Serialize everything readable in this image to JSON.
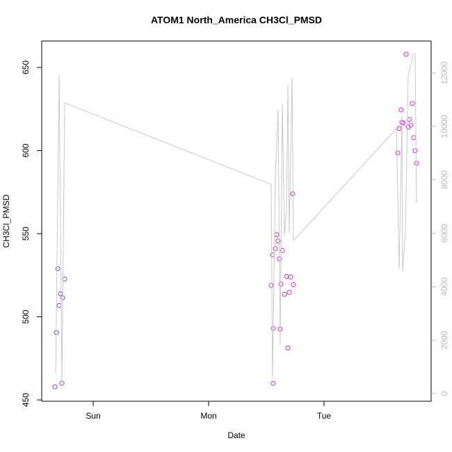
{
  "chart_data": {
    "type": "scatter",
    "title": "ATOM1 North_America CH3Cl_PMSD",
    "x_label": "Date",
    "y_label": "CH3Cl_PMSD",
    "xlim": [
      -0.446,
      2.928
    ],
    "xticks": [
      {
        "value": 0,
        "label": "Sun"
      },
      {
        "value": 1,
        "label": "Mon"
      },
      {
        "value": 2,
        "label": "Tue"
      }
    ],
    "ylim": [
      449.2,
      665.9
    ],
    "yticks": [
      450,
      500,
      550,
      600,
      650
    ],
    "y2lim": [
      -286,
      13196
    ],
    "y2ticks": [
      0,
      2000,
      4000,
      6000,
      8000,
      10000,
      12000
    ],
    "series": [
      {
        "type": "scatter",
        "color": "#8a3cf0",
        "x": [
          -0.331,
          -0.319,
          -0.307,
          -0.295,
          -0.283,
          -0.271,
          -0.265,
          -0.247
        ],
        "values": [
          457.9,
          490.5,
          528.9,
          506.8,
          513.9,
          460.0,
          511.4,
          522.7
        ]
      },
      {
        "type": "scatter",
        "color": "#d62ad8",
        "x": [
          1.542,
          1.554,
          1.56,
          1.56,
          1.578,
          1.59,
          1.602,
          1.614,
          1.62,
          1.627,
          1.639,
          1.657,
          1.675,
          1.687,
          1.699,
          1.711,
          1.729,
          1.735
        ],
        "values": [
          518.9,
          537.3,
          493.0,
          460.0,
          541.0,
          549.4,
          545.6,
          534.8,
          492.6,
          519.7,
          539.8,
          513.5,
          524.3,
          481.3,
          514.7,
          523.9,
          574.0,
          519.3
        ]
      },
      {
        "type": "scatter",
        "color": "#f01cf0",
        "x": [
          2.639,
          2.651,
          2.669,
          2.675,
          2.687,
          2.711,
          2.729,
          2.741,
          2.753,
          2.765,
          2.777,
          2.789,
          2.801
        ],
        "values": [
          598.6,
          613.3,
          624.5,
          617.0,
          616.6,
          657.9,
          614.1,
          618.7,
          615.3,
          628.3,
          607.8,
          599.9,
          592.4
        ]
      },
      {
        "type": "line",
        "axis": "y2",
        "color": "#c8c8c8",
        "x": [
          -0.325,
          -0.295,
          -0.271,
          -0.247,
          1.542,
          1.554,
          1.578,
          1.602,
          1.62,
          1.639,
          1.657,
          1.675,
          1.687,
          1.699,
          1.723,
          1.735,
          2.627,
          2.651,
          2.675,
          2.681,
          2.705,
          2.729,
          2.759,
          2.771,
          2.789,
          2.801
        ],
        "values": [
          755,
          11921,
          416,
          10880,
          7835,
          599,
          8017,
          10620,
          1848,
          10828,
          5934,
          6793,
          11556,
          6012,
          11790,
          5726,
          9917,
          4659,
          10385,
          4581,
          6012,
          11921,
          12390,
          12702,
          12702,
          7132
        ]
      }
    ]
  }
}
